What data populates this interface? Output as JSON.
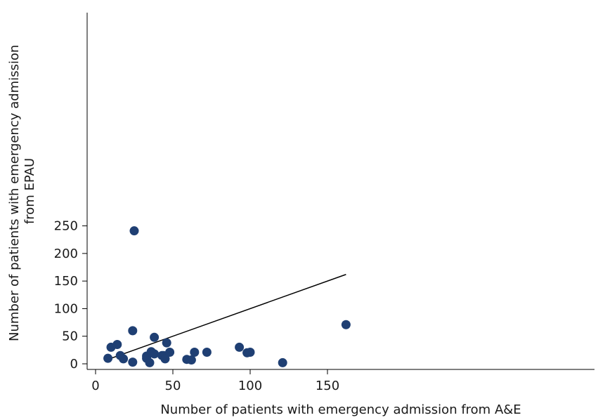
{
  "chart_data": {
    "type": "scatter",
    "title": "",
    "xlabel": "Number of patients with emergency admission from A&E",
    "ylabel_lines": [
      "Number of patients with emergency admission",
      "from EPAU"
    ],
    "xlim": [
      0,
      162
    ],
    "ylim": [
      0,
      250
    ],
    "xticks": [
      0,
      50,
      100,
      150
    ],
    "yticks": [
      0,
      50,
      100,
      150,
      200,
      250
    ],
    "grid": false,
    "point_color": "#1f3f73",
    "line_color": "#000000",
    "points": [
      {
        "x": 8,
        "y": 10
      },
      {
        "x": 10,
        "y": 30
      },
      {
        "x": 14,
        "y": 35
      },
      {
        "x": 16,
        "y": 15
      },
      {
        "x": 18,
        "y": 9
      },
      {
        "x": 24,
        "y": 60
      },
      {
        "x": 24,
        "y": 3
      },
      {
        "x": 25,
        "y": 241
      },
      {
        "x": 33,
        "y": 14
      },
      {
        "x": 33,
        "y": 10
      },
      {
        "x": 35,
        "y": 2
      },
      {
        "x": 36,
        "y": 22
      },
      {
        "x": 36,
        "y": 20
      },
      {
        "x": 38,
        "y": 48
      },
      {
        "x": 38,
        "y": 18
      },
      {
        "x": 43,
        "y": 15
      },
      {
        "x": 44,
        "y": 15
      },
      {
        "x": 45,
        "y": 9
      },
      {
        "x": 46,
        "y": 38
      },
      {
        "x": 48,
        "y": 21
      },
      {
        "x": 59,
        "y": 8
      },
      {
        "x": 62,
        "y": 7
      },
      {
        "x": 64,
        "y": 21
      },
      {
        "x": 72,
        "y": 21
      },
      {
        "x": 93,
        "y": 30
      },
      {
        "x": 98,
        "y": 20
      },
      {
        "x": 100,
        "y": 21
      },
      {
        "x": 121,
        "y": 2
      },
      {
        "x": 162,
        "y": 71
      }
    ],
    "reference_line": {
      "x": [
        8,
        162
      ],
      "y": [
        8,
        162
      ]
    }
  }
}
